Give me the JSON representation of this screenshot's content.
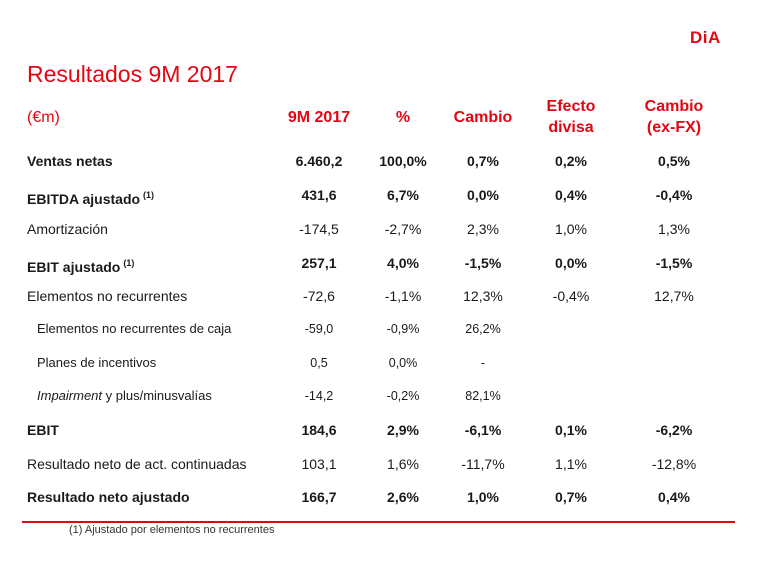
{
  "logo": "DiA",
  "title": "Resultados 9M 2017",
  "header": {
    "unit": "(€m)",
    "col1": "9M 2017",
    "col2": "%",
    "col3": "Cambio",
    "col4_line1": "Efecto",
    "col4_line2": "divisa",
    "col5_line1": "Cambio",
    "col5_line2": "(ex-FX)"
  },
  "rows": [
    {
      "label": "Ventas netas",
      "note": "",
      "values": [
        "6.460,2",
        "100,0%",
        "0,7%",
        "0,2%",
        "0,5%"
      ]
    },
    {
      "label": "EBITDA ajustado",
      "note": "(1)",
      "values": [
        "431,6",
        "6,7%",
        "0,0%",
        "0,4%",
        "-0,4%"
      ]
    },
    {
      "label": "Amortización",
      "note": "",
      "values": [
        "-174,5",
        "-2,7%",
        "2,3%",
        "1,0%",
        "1,3%"
      ]
    },
    {
      "label": "EBIT ajustado",
      "note": "(1)",
      "values": [
        "257,1",
        "4,0%",
        "-1,5%",
        "0,0%",
        "-1,5%"
      ]
    },
    {
      "label": "Elementos no recurrentes",
      "note": "",
      "values": [
        "-72,6",
        "-1,1%",
        "12,3%",
        "-0,4%",
        "12,7%"
      ]
    },
    {
      "label": "Elementos no recurrentes de caja",
      "note": "",
      "values": [
        "-59,0",
        "-0,9%",
        "26,2%",
        "",
        ""
      ]
    },
    {
      "label": "Planes de incentivos",
      "note": "",
      "values": [
        "0,5",
        "0,0%",
        "-",
        "",
        ""
      ]
    },
    {
      "label_italic": "Impairment",
      "label_rest": " y plus/minusvalías",
      "note": "",
      "values": [
        "-14,2",
        "-0,2%",
        "82,1%",
        "",
        ""
      ]
    },
    {
      "label": "EBIT",
      "note": "",
      "values": [
        "184,6",
        "2,9%",
        "-6,1%",
        "0,1%",
        "-6,2%"
      ]
    },
    {
      "label": "Resultado neto de act. continuadas",
      "note": "",
      "values": [
        "103,1",
        "1,6%",
        "-11,7%",
        "1,1%",
        "-12,8%"
      ]
    },
    {
      "label": "Resultado neto ajustado",
      "note": "",
      "values": [
        "166,7",
        "2,6%",
        "1,0%",
        "0,7%",
        "0,4%"
      ]
    }
  ],
  "footnote": "(1) Ajustado por elementos no recurrentes",
  "colors": {
    "accent": "#e30613",
    "text": "#1a1a1a"
  }
}
